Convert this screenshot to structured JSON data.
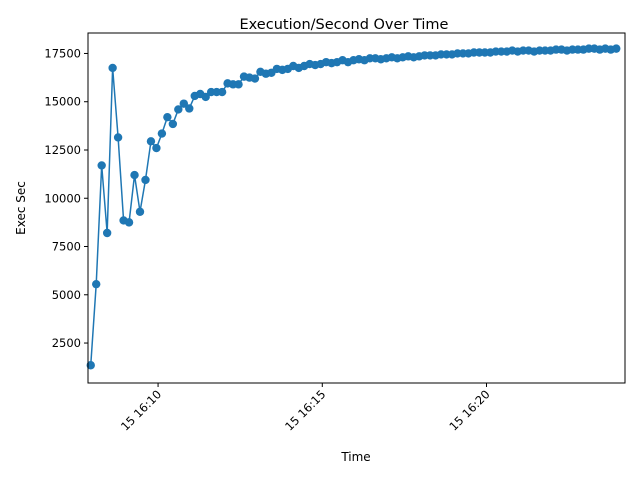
{
  "chart_data": {
    "type": "line",
    "title": "Execution/Second Over Time",
    "xlabel": "Time",
    "ylabel": "Exec Sec",
    "xlim": [
      "16:07:52",
      "16:24:13"
    ],
    "ylim": [
      430,
      18560
    ],
    "x_ticks": [
      {
        "t": "16:10:00",
        "label": "15 16:10"
      },
      {
        "t": "16:15:00",
        "label": "15 16:15"
      },
      {
        "t": "16:20:00",
        "label": "15 16:20"
      }
    ],
    "y_ticks": [
      {
        "v": 2500,
        "label": "2500"
      },
      {
        "v": 5000,
        "label": "5000"
      },
      {
        "v": 7500,
        "label": "7500"
      },
      {
        "v": 10000,
        "label": "10000"
      },
      {
        "v": 12500,
        "label": "12500"
      },
      {
        "v": 15000,
        "label": "15000"
      },
      {
        "v": 17500,
        "label": "17500"
      }
    ],
    "grid": false,
    "series": [
      {
        "color": "#1f77b4",
        "marker": "circle",
        "x": [
          "16:07:57",
          "16:08:07",
          "16:08:17",
          "16:08:27",
          "16:08:37",
          "16:08:47",
          "16:08:57",
          "16:09:07",
          "16:09:17",
          "16:09:27",
          "16:09:37",
          "16:09:47",
          "16:09:57",
          "16:10:07",
          "16:10:17",
          "16:10:27",
          "16:10:37",
          "16:10:47",
          "16:10:57",
          "16:11:07",
          "16:11:17",
          "16:11:27",
          "16:11:37",
          "16:11:47",
          "16:11:57",
          "16:12:07",
          "16:12:17",
          "16:12:27",
          "16:12:37",
          "16:12:47",
          "16:12:57",
          "16:13:07",
          "16:13:17",
          "16:13:27",
          "16:13:37",
          "16:13:47",
          "16:13:57",
          "16:14:07",
          "16:14:17",
          "16:14:27",
          "16:14:37",
          "16:14:47",
          "16:14:57",
          "16:15:07",
          "16:15:17",
          "16:15:27",
          "16:15:37",
          "16:15:47",
          "16:15:57",
          "16:16:07",
          "16:16:17",
          "16:16:27",
          "16:16:37",
          "16:16:47",
          "16:16:57",
          "16:17:07",
          "16:17:17",
          "16:17:27",
          "16:17:37",
          "16:17:47",
          "16:17:57",
          "16:18:07",
          "16:18:17",
          "16:18:27",
          "16:18:37",
          "16:18:47",
          "16:18:57",
          "16:19:07",
          "16:19:17",
          "16:19:27",
          "16:19:37",
          "16:19:47",
          "16:19:57",
          "16:20:07",
          "16:20:17",
          "16:20:27",
          "16:20:37",
          "16:20:47",
          "16:20:57",
          "16:21:07",
          "16:21:17",
          "16:21:27",
          "16:21:37",
          "16:21:47",
          "16:21:57",
          "16:22:07",
          "16:22:17",
          "16:22:27",
          "16:22:37",
          "16:22:47",
          "16:22:57",
          "16:23:07",
          "16:23:17",
          "16:23:27",
          "16:23:37",
          "16:23:47",
          "16:23:57"
        ],
        "y": [
          1350,
          5550,
          11700,
          8200,
          16750,
          13150,
          8850,
          8750,
          11200,
          9300,
          10950,
          12950,
          12600,
          13350,
          14200,
          13850,
          14600,
          14900,
          14650,
          15300,
          15400,
          15250,
          15500,
          15500,
          15500,
          15950,
          15900,
          15900,
          16300,
          16250,
          16200,
          16550,
          16450,
          16500,
          16700,
          16650,
          16700,
          16850,
          16750,
          16850,
          16950,
          16900,
          16950,
          17050,
          17000,
          17050,
          17150,
          17050,
          17150,
          17200,
          17150,
          17250,
          17250,
          17200,
          17250,
          17300,
          17250,
          17300,
          17350,
          17300,
          17350,
          17400,
          17400,
          17400,
          17450,
          17450,
          17450,
          17500,
          17500,
          17500,
          17550,
          17550,
          17550,
          17550,
          17600,
          17600,
          17600,
          17650,
          17600,
          17650,
          17650,
          17600,
          17650,
          17650,
          17650,
          17700,
          17700,
          17650,
          17700,
          17700,
          17700,
          17750,
          17750,
          17700,
          17750,
          17700,
          17750
        ]
      }
    ]
  }
}
